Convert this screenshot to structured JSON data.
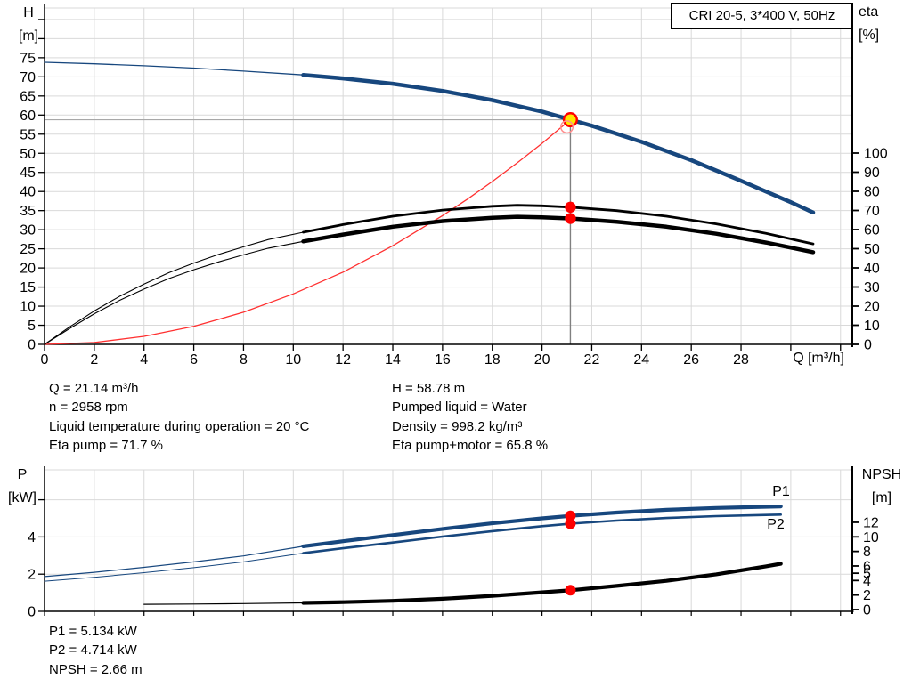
{
  "title_box": {
    "text": "CRI 20-5, 3*400 V, 50Hz"
  },
  "axis_labels": {
    "top_left": [
      "H",
      "[m]"
    ],
    "top_right": [
      "eta",
      "[%]"
    ],
    "bottom_left": [
      "P",
      "[kW]"
    ],
    "bottom_right": [
      "NPSH",
      "[m]"
    ],
    "x": "Q [m³/h]"
  },
  "annotations": {
    "info_left": [
      "Q = 21.14 m³/h",
      "n = 2958 rpm",
      "Liquid temperature during operation = 20 °C",
      "Eta pump = 71.7 %"
    ],
    "info_right": [
      "H = 58.78 m",
      "Pumped liquid = Water",
      "Density = 998.2 kg/m³",
      "Eta pump+motor = 65.8 %"
    ],
    "info_bottom": [
      "P1 = 5.134 kW",
      "P2 = 4.714 kW",
      "NPSH = 2.66 m"
    ]
  },
  "colors": {
    "curve_blue": "#17477e",
    "label_blue": "#2a5ca8",
    "curve_red": "#ff3030",
    "marker_red": "#ff0000",
    "marker_yellow": "#ffe600",
    "ring_red": "#ff9090",
    "grid": "#d9d9d9",
    "axis": "#000000",
    "duty_v_line": "#808080",
    "duty_h_line": "#a8a8a8",
    "black": "#000000"
  },
  "duty_point": {
    "q": 21.14,
    "h": 58.78,
    "eta_pump": 71.7,
    "eta_pump_motor": 65.8,
    "p1": 5.134,
    "p2": 4.714,
    "npsh": 2.66
  },
  "chart_data": [
    {
      "type": "line",
      "name": "head-efficiency-chart",
      "x_axis": {
        "label": "Q [m³/h]",
        "range": [
          0,
          32.5
        ],
        "ticks": [
          0,
          2,
          4,
          6,
          8,
          10,
          12,
          14,
          16,
          18,
          20,
          22,
          24,
          26,
          28
        ],
        "ticks_all": [
          0,
          2,
          4,
          6,
          8,
          10,
          12,
          14,
          16,
          18,
          20,
          22,
          24,
          26,
          28,
          30,
          32
        ]
      },
      "y_left": {
        "label": "H [m]",
        "range": [
          0,
          88
        ],
        "ticks": [
          0,
          5,
          10,
          15,
          20,
          25,
          30,
          35,
          40,
          45,
          50,
          55,
          60,
          65,
          70,
          75
        ],
        "ticks_unlabeled": [
          80,
          85
        ]
      },
      "y_right": {
        "label": "eta [%]",
        "range": [
          0,
          100
        ],
        "ticks": [
          0,
          10,
          20,
          30,
          40,
          50,
          60,
          70,
          80,
          90,
          100
        ]
      },
      "grid": true,
      "series": [
        {
          "name": "affinity-parabola",
          "y_axis": "h",
          "color": "#ff3030",
          "width_thin": 1.3,
          "width_bold": 1.3,
          "points": [
            [
              0,
              0
            ],
            [
              2,
              0.5
            ],
            [
              4,
              2.1
            ],
            [
              6,
              4.7
            ],
            [
              8,
              8.4
            ],
            [
              10,
              13.2
            ],
            [
              12,
              18.9
            ],
            [
              14,
              25.8
            ],
            [
              16,
              33.7
            ],
            [
              17,
              38.0
            ],
            [
              18,
              42.6
            ],
            [
              19,
              47.5
            ],
            [
              20,
              52.6
            ],
            [
              21.14,
              58.78
            ]
          ]
        },
        {
          "name": "eta-pump-curve",
          "y_axis": "eta",
          "color": "#000000",
          "width_thin": 1.1,
          "width_bold": 2.8,
          "bold_from": 10.4,
          "points": [
            [
              0,
              0
            ],
            [
              1,
              9
            ],
            [
              2,
              17.5
            ],
            [
              3,
              25
            ],
            [
              4,
              31.5
            ],
            [
              5,
              37.5
            ],
            [
              6,
              42.5
            ],
            [
              7,
              47
            ],
            [
              8,
              51
            ],
            [
              9,
              54.8
            ],
            [
              10.4,
              58.6
            ],
            [
              12,
              62.6
            ],
            [
              14,
              67
            ],
            [
              16,
              70.2
            ],
            [
              18,
              72.2
            ],
            [
              19,
              72.7
            ],
            [
              20,
              72.4
            ],
            [
              21.14,
              71.7
            ],
            [
              23,
              69.9
            ],
            [
              25,
              67
            ],
            [
              27,
              63
            ],
            [
              29,
              58
            ],
            [
              30.9,
              52.5
            ]
          ]
        },
        {
          "name": "eta-pump-motor-curve",
          "y_axis": "eta",
          "color": "#000000",
          "width_thin": 1.1,
          "width_bold": 4.5,
          "bold_from": 10.4,
          "points": [
            [
              0,
              0
            ],
            [
              1,
              8.2
            ],
            [
              2,
              16
            ],
            [
              3,
              22.9
            ],
            [
              4,
              28.9
            ],
            [
              5,
              34.4
            ],
            [
              6,
              39
            ],
            [
              7,
              43.1
            ],
            [
              8,
              46.8
            ],
            [
              9,
              50.3
            ],
            [
              10.4,
              53.8
            ],
            [
              12,
              57.4
            ],
            [
              14,
              61.5
            ],
            [
              16,
              64.4
            ],
            [
              18,
              66.2
            ],
            [
              19,
              66.7
            ],
            [
              20,
              66.4
            ],
            [
              21.14,
              65.8
            ],
            [
              23,
              64.1
            ],
            [
              25,
              61.5
            ],
            [
              27,
              57.8
            ],
            [
              29,
              53.2
            ],
            [
              30.9,
              48.2
            ]
          ]
        },
        {
          "name": "hq-curve",
          "y_axis": "h",
          "color": "#17477e",
          "width_thin": 1.3,
          "width_bold": 4.5,
          "bold_from": 10.4,
          "points": [
            [
              0,
              73.8
            ],
            [
              2,
              73.4
            ],
            [
              4,
              72.9
            ],
            [
              6,
              72.3
            ],
            [
              8,
              71.5
            ],
            [
              10.4,
              70.5
            ],
            [
              12,
              69.6
            ],
            [
              14,
              68.2
            ],
            [
              16,
              66.3
            ],
            [
              18,
              63.9
            ],
            [
              20,
              60.9
            ],
            [
              21.14,
              58.78
            ],
            [
              22,
              57.2
            ],
            [
              24,
              53.0
            ],
            [
              26,
              48.2
            ],
            [
              28,
              42.8
            ],
            [
              30,
              37.2
            ],
            [
              30.9,
              34.5
            ]
          ]
        }
      ],
      "markers": [
        {
          "name": "duty-point-marker",
          "q": 21.14,
          "y_axis": "h",
          "value": 58.78,
          "style": "yellow-red"
        },
        {
          "name": "duty-ring-marker",
          "q": 21.0,
          "y_axis": "h",
          "value": 56.9,
          "style": "ring"
        },
        {
          "name": "eta-pump-dot",
          "q": 21.14,
          "y_axis": "eta",
          "value": 71.7,
          "style": "red-dot"
        },
        {
          "name": "eta-pump-motor-dot",
          "q": 21.14,
          "y_axis": "eta",
          "value": 65.8,
          "style": "red-dot"
        }
      ]
    },
    {
      "type": "line",
      "name": "power-npsh-chart",
      "x_axis": {
        "label": "",
        "range": [
          0,
          32.5
        ],
        "ticks": [],
        "ticks_all": [
          0,
          2,
          4,
          6,
          8,
          10,
          12,
          14,
          16,
          18,
          20,
          22,
          24,
          26,
          28,
          30,
          32
        ]
      },
      "y_left": {
        "label": "P [kW]",
        "range": [
          0,
          7.6
        ],
        "ticks": [
          0,
          2,
          4
        ],
        "ticks_unlabeled": [
          6
        ]
      },
      "y_right": {
        "label": "NPSH [m]",
        "range": [
          0,
          12
        ],
        "ticks": [
          0,
          2,
          4,
          5,
          6,
          8,
          10,
          12
        ]
      },
      "grid": true,
      "series": [
        {
          "name": "p2-curve",
          "label": "P2",
          "y_axis": "p",
          "color": "#17477e",
          "width_thin": 1.0,
          "width_bold": 2.6,
          "bold_from": 10.4,
          "points": [
            [
              0,
              1.62
            ],
            [
              2,
              1.83
            ],
            [
              4,
              2.08
            ],
            [
              6,
              2.35
            ],
            [
              8,
              2.66
            ],
            [
              10.4,
              3.13
            ],
            [
              12,
              3.39
            ],
            [
              14,
              3.7
            ],
            [
              16,
              4.02
            ],
            [
              18,
              4.31
            ],
            [
              20,
              4.58
            ],
            [
              21.14,
              4.714
            ],
            [
              23,
              4.88
            ],
            [
              25,
              5.02
            ],
            [
              27,
              5.12
            ],
            [
              29,
              5.18
            ],
            [
              29.6,
              5.2
            ]
          ]
        },
        {
          "name": "p1-curve",
          "label": "P1",
          "y_axis": "p",
          "color": "#17477e",
          "width_thin": 1.2,
          "width_bold": 4.2,
          "bold_from": 10.4,
          "points": [
            [
              0,
              1.87
            ],
            [
              2,
              2.1
            ],
            [
              4,
              2.37
            ],
            [
              6,
              2.66
            ],
            [
              8,
              2.98
            ],
            [
              10.4,
              3.5
            ],
            [
              12,
              3.77
            ],
            [
              14,
              4.1
            ],
            [
              16,
              4.43
            ],
            [
              18,
              4.73
            ],
            [
              20,
              5.0
            ],
            [
              21.14,
              5.134
            ],
            [
              23,
              5.31
            ],
            [
              25,
              5.46
            ],
            [
              27,
              5.56
            ],
            [
              29,
              5.62
            ],
            [
              29.6,
              5.64
            ]
          ]
        },
        {
          "name": "npsh-curve",
          "y_axis": "npsh",
          "color": "#000000",
          "width_thin": 1.2,
          "width_bold": 4.2,
          "bold_from": 10.4,
          "points": [
            [
              4,
              0.72
            ],
            [
              6,
              0.76
            ],
            [
              8,
              0.82
            ],
            [
              10.4,
              0.92
            ],
            [
              12,
              1.02
            ],
            [
              14,
              1.2
            ],
            [
              16,
              1.48
            ],
            [
              18,
              1.88
            ],
            [
              20,
              2.38
            ],
            [
              21.14,
              2.66
            ],
            [
              23,
              3.25
            ],
            [
              25,
              3.95
            ],
            [
              27,
              4.85
            ],
            [
              29,
              5.95
            ],
            [
              29.6,
              6.3
            ]
          ]
        }
      ],
      "markers": [
        {
          "name": "p1-dot",
          "q": 21.14,
          "y_axis": "p",
          "value": 5.134,
          "style": "red-dot"
        },
        {
          "name": "p2-dot",
          "q": 21.14,
          "y_axis": "p",
          "value": 4.714,
          "style": "red-dot"
        },
        {
          "name": "npsh-dot",
          "q": 21.14,
          "y_axis": "npsh",
          "value": 2.66,
          "style": "red-dot"
        }
      ],
      "series_labels": [
        {
          "text": "P1",
          "x": 877,
          "y": 39
        },
        {
          "text": "P2",
          "x": 871,
          "y": 76
        }
      ]
    }
  ]
}
